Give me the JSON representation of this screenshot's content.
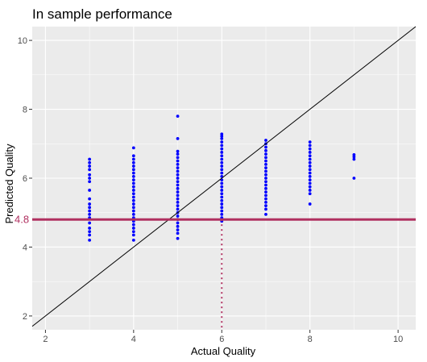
{
  "chart_data": {
    "type": "scatter",
    "title": "In sample performance",
    "xlabel": "Actual Quality",
    "ylabel": "Predicted Quality",
    "xlim": [
      1.7,
      10.4
    ],
    "ylim": [
      1.6,
      10.4
    ],
    "x_ticks": [
      2,
      4,
      6,
      8,
      10
    ],
    "y_ticks": [
      2,
      4,
      6,
      8,
      10
    ],
    "grid": true,
    "point_color": "#0000ff",
    "background_color": "#ebebeb",
    "identity_line": {
      "slope": 1,
      "intercept": 0,
      "color": "#000000"
    },
    "reference_line": {
      "y": 4.8,
      "label": "4.8",
      "color": "#b03060"
    },
    "reference_vline": {
      "x": 6,
      "style": "dotted",
      "color": "#b03060"
    },
    "points": [
      {
        "x": 3,
        "y": [
          4.2,
          4.35,
          4.45,
          4.55,
          4.7,
          4.85,
          4.95,
          5.05,
          5.15,
          5.25,
          5.4,
          5.65,
          5.9,
          6.0,
          6.1,
          6.25,
          6.35,
          6.45,
          6.55
        ]
      },
      {
        "x": 4,
        "y": [
          4.2,
          4.35,
          4.45,
          4.55,
          4.65,
          4.75,
          4.85,
          4.95,
          5.05,
          5.15,
          5.25,
          5.35,
          5.45,
          5.55,
          5.65,
          5.75,
          5.85,
          5.95,
          6.05,
          6.15,
          6.25,
          6.35,
          6.45,
          6.55,
          6.65,
          6.88
        ]
      },
      {
        "x": 5,
        "y": [
          4.25,
          4.4,
          4.5,
          4.6,
          4.7,
          4.8,
          4.9,
          5.0,
          5.1,
          5.2,
          5.3,
          5.4,
          5.5,
          5.6,
          5.7,
          5.8,
          5.9,
          6.0,
          6.1,
          6.2,
          6.3,
          6.4,
          6.5,
          6.6,
          6.7,
          6.78,
          7.15,
          7.8
        ]
      },
      {
        "x": 6,
        "y": [
          4.75,
          4.85,
          4.95,
          5.05,
          5.15,
          5.25,
          5.35,
          5.45,
          5.55,
          5.65,
          5.75,
          5.85,
          5.95,
          6.05,
          6.15,
          6.25,
          6.35,
          6.45,
          6.55,
          6.65,
          6.75,
          6.85,
          6.95,
          7.05,
          7.15,
          7.22,
          7.28
        ]
      },
      {
        "x": 7,
        "y": [
          4.95,
          5.1,
          5.2,
          5.3,
          5.4,
          5.5,
          5.6,
          5.7,
          5.8,
          5.9,
          6.0,
          6.1,
          6.2,
          6.3,
          6.4,
          6.5,
          6.6,
          6.7,
          6.8,
          6.9,
          7.0,
          7.1
        ]
      },
      {
        "x": 8,
        "y": [
          5.25,
          5.55,
          5.65,
          5.75,
          5.85,
          5.95,
          6.05,
          6.15,
          6.25,
          6.35,
          6.45,
          6.55,
          6.65,
          6.75,
          6.85,
          6.95,
          7.05
        ]
      },
      {
        "x": 9,
        "y": [
          6.0,
          6.55,
          6.62,
          6.68
        ]
      }
    ]
  }
}
